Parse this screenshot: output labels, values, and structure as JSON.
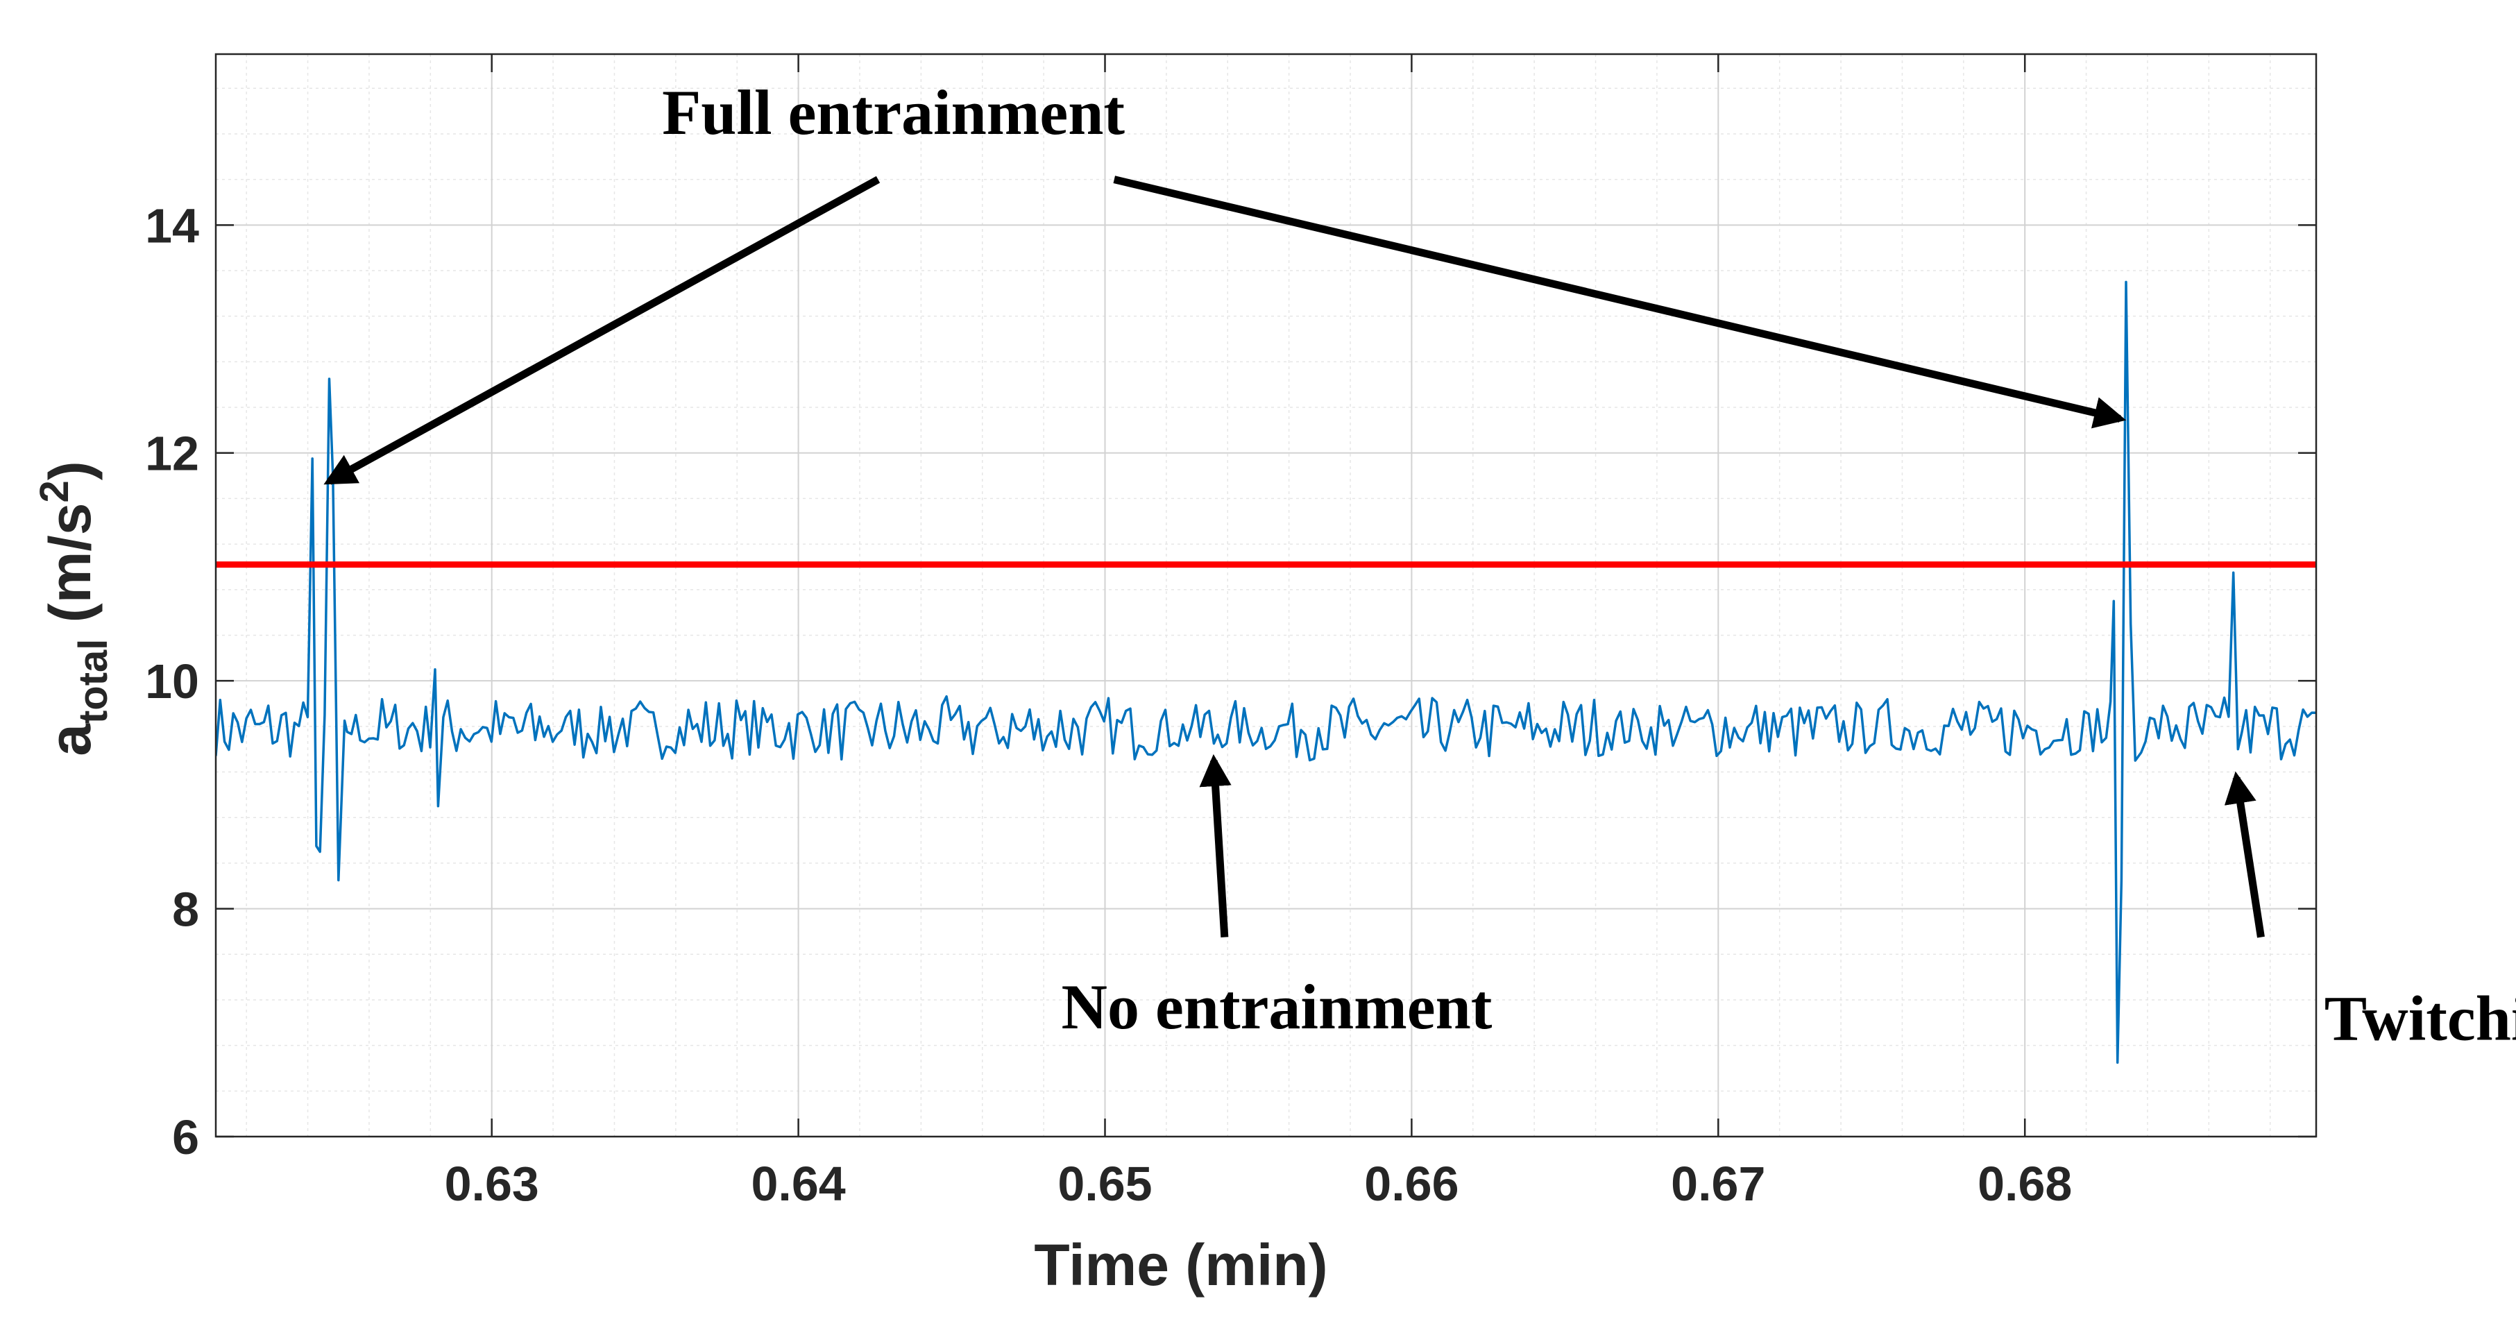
{
  "chart_data": {
    "type": "line",
    "xlabel": "Time (min)",
    "ylabel": {
      "base": "a",
      "subscript": "total",
      "unit_prefix": " (m/s",
      "superscript": "2",
      "unit_suffix": ")"
    },
    "xlim": [
      0.621,
      0.6895
    ],
    "ylim": [
      6,
      15.5
    ],
    "xticks": [
      0.63,
      0.64,
      0.65,
      0.66,
      0.67,
      0.68
    ],
    "yticks": [
      6,
      8,
      10,
      12,
      14
    ],
    "xtick_labels": [
      "0.63",
      "0.64",
      "0.65",
      "0.66",
      "0.67",
      "0.68"
    ],
    "ytick_labels": [
      "6",
      "8",
      "10",
      "12",
      "14"
    ],
    "grid": "major and minor",
    "series": [
      {
        "color": "#0072BD",
        "baseline_mean": 9.58,
        "x_start": 0.621,
        "x_end": 0.6895,
        "sample_count": 480,
        "events": [
          {
            "x": 0.62415,
            "y": 11.95
          },
          {
            "x": 0.62428,
            "y": 8.55
          },
          {
            "x": 0.6244,
            "y": 8.5
          },
          {
            "x": 0.62455,
            "y": 9.7
          },
          {
            "x": 0.6247,
            "y": 12.65
          },
          {
            "x": 0.62482,
            "y": 11.8
          },
          {
            "x": 0.625,
            "y": 8.25
          },
          {
            "x": 0.6252,
            "y": 9.65
          },
          {
            "x": 0.62815,
            "y": 10.1
          },
          {
            "x": 0.62825,
            "y": 8.9
          },
          {
            "x": 0.6829,
            "y": 10.7
          },
          {
            "x": 0.68302,
            "y": 6.65
          },
          {
            "x": 0.68315,
            "y": 8.25
          },
          {
            "x": 0.6833,
            "y": 13.5
          },
          {
            "x": 0.68345,
            "y": 10.5
          },
          {
            "x": 0.6836,
            "y": 9.3
          },
          {
            "x": 0.6868,
            "y": 10.95
          },
          {
            "x": 0.68695,
            "y": 9.4
          },
          {
            "x": 0.65355,
            "y": 9.45
          }
        ]
      }
    ],
    "threshold": {
      "y": 11.02,
      "color": "#FF0000"
    },
    "annotations": [
      {
        "id": "full",
        "text": "Full entrainment",
        "x": 0.6431,
        "y": 14.8,
        "arrows": [
          {
            "from": [
              0.6426,
              14.4
            ],
            "to": [
              0.6247,
              11.75
            ]
          },
          {
            "from": [
              0.6503,
              14.4
            ],
            "to": [
              0.6831,
              12.3
            ]
          }
        ]
      },
      {
        "id": "none",
        "text": "No entrainment",
        "x": 0.6556,
        "y": 6.95,
        "arrows": [
          {
            "from": [
              0.6539,
              7.75
            ],
            "to": [
              0.65355,
              9.3
            ]
          }
        ]
      },
      {
        "id": "twitch",
        "text": "Twitching",
        "x": 0.6942,
        "y": 6.85,
        "arrows": [
          {
            "from": [
              0.6877,
              7.75
            ],
            "to": [
              0.6869,
              9.15
            ]
          }
        ]
      }
    ]
  }
}
